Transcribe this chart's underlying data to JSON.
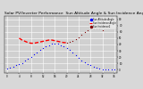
{
  "title": "Solar PV/Inverter Performance  Sun Altitude Angle & Sun Incidence Angle on PV Panels",
  "title_fontsize": 3.2,
  "background_color": "#d8d8d8",
  "plot_bg_color": "#d0d0d0",
  "grid_color": "#ffffff",
  "ylabel_right_vals": [
    0,
    10,
    20,
    30,
    40,
    50,
    60,
    70,
    80
  ],
  "ylim": [
    -5,
    85
  ],
  "legend_labels": [
    "Sun Altitude Angle",
    "Sun Incidence Angle",
    "Sun Incidence2"
  ],
  "legend_colors": [
    "#0000ff",
    "#ff0000",
    "#800000"
  ],
  "sun_altitude_x": [
    0,
    1,
    2,
    3,
    4,
    5,
    6,
    7,
    8,
    9,
    10,
    11,
    12,
    13,
    14,
    15,
    16,
    17,
    18,
    19,
    20,
    21,
    22,
    23,
    24,
    25,
    26,
    27,
    28,
    29,
    30,
    31,
    32,
    33,
    34,
    35,
    36
  ],
  "sun_altitude_y": [
    2,
    4,
    5,
    7,
    9,
    11,
    14,
    17,
    20,
    24,
    28,
    31,
    34,
    37,
    39,
    41,
    42,
    41,
    39,
    37,
    34,
    31,
    27,
    23,
    19,
    15,
    12,
    9,
    7,
    5,
    3,
    2,
    1,
    0,
    0,
    0,
    0
  ],
  "sun_incidence_dash_x": [
    4,
    5,
    6,
    7,
    8,
    9,
    10,
    11,
    12,
    13,
    14,
    15,
    16,
    17,
    18,
    19,
    20
  ],
  "sun_incidence_dash_y": [
    50,
    47,
    45,
    43,
    42,
    42,
    43,
    44,
    45,
    46,
    47,
    47,
    46,
    45,
    44,
    43,
    43
  ],
  "sun_incidence_dot_x": [
    20,
    21,
    22,
    23,
    24,
    25,
    26,
    27,
    28,
    29,
    30,
    31,
    32
  ],
  "sun_incidence_dot_y": [
    43,
    44,
    46,
    48,
    51,
    55,
    59,
    63,
    65,
    66,
    66,
    65,
    63
  ],
  "xlim": [
    0,
    36
  ],
  "xlim_display": [
    -1,
    37
  ],
  "xlabel_ticks": [
    0,
    4,
    8,
    12,
    16,
    20,
    24,
    28,
    32,
    36
  ]
}
